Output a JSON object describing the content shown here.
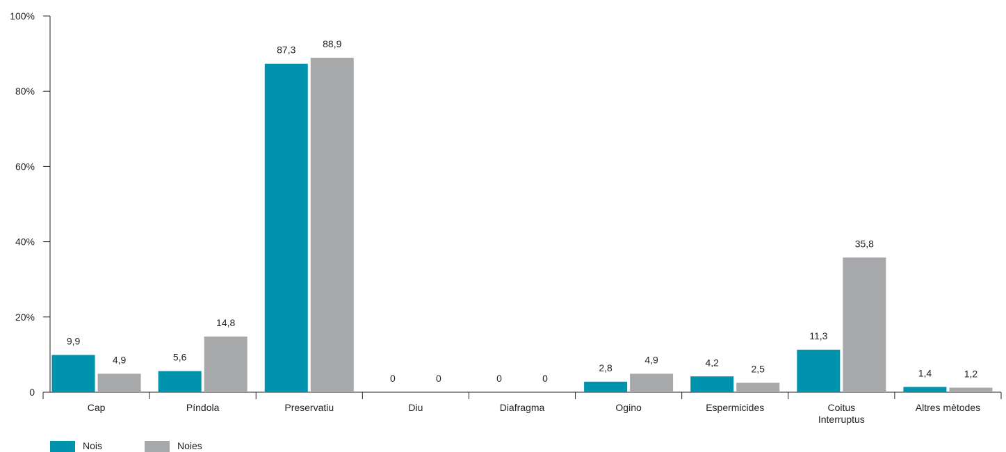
{
  "chart_data": {
    "type": "bar",
    "categories": [
      "Cap",
      "Píndola",
      "Preservatiu",
      "Diu",
      "Diafragma",
      "Ogino",
      "Espermicides",
      "Coitus Interruptus",
      "Altres mètodes"
    ],
    "category_lines": [
      [
        "Cap"
      ],
      [
        "Píndola"
      ],
      [
        "Preservatiu"
      ],
      [
        "Diu"
      ],
      [
        "Diafragma"
      ],
      [
        "Ogino"
      ],
      [
        "Espermicides"
      ],
      [
        "Coitus",
        "Interruptus"
      ],
      [
        "Altres mètodes"
      ]
    ],
    "series": [
      {
        "name": "Nois",
        "color": "#0093ad",
        "values": [
          9.9,
          5.6,
          87.3,
          0,
          0,
          2.8,
          4.2,
          11.3,
          1.4
        ],
        "labels": [
          "9,9",
          "5,6",
          "87,3",
          "0",
          "0",
          "2,8",
          "4,2",
          "11,3",
          "1,4"
        ]
      },
      {
        "name": "Noies",
        "color": "#a7a8aa",
        "values": [
          4.9,
          14.8,
          88.9,
          0,
          0,
          4.9,
          2.5,
          35.8,
          1.2
        ],
        "labels": [
          "4,9",
          "14,8",
          "88,9",
          "0",
          "0",
          "4,9",
          "2,5",
          "35,8",
          "1,2"
        ]
      }
    ],
    "y_ticks": [
      0,
      20,
      40,
      60,
      80,
      100
    ],
    "y_tick_labels": [
      "0",
      "20%",
      "40%",
      "60%",
      "80%",
      "100%"
    ],
    "ylim": [
      0,
      100
    ],
    "grid": false,
    "legend_position": "bottom-left"
  }
}
